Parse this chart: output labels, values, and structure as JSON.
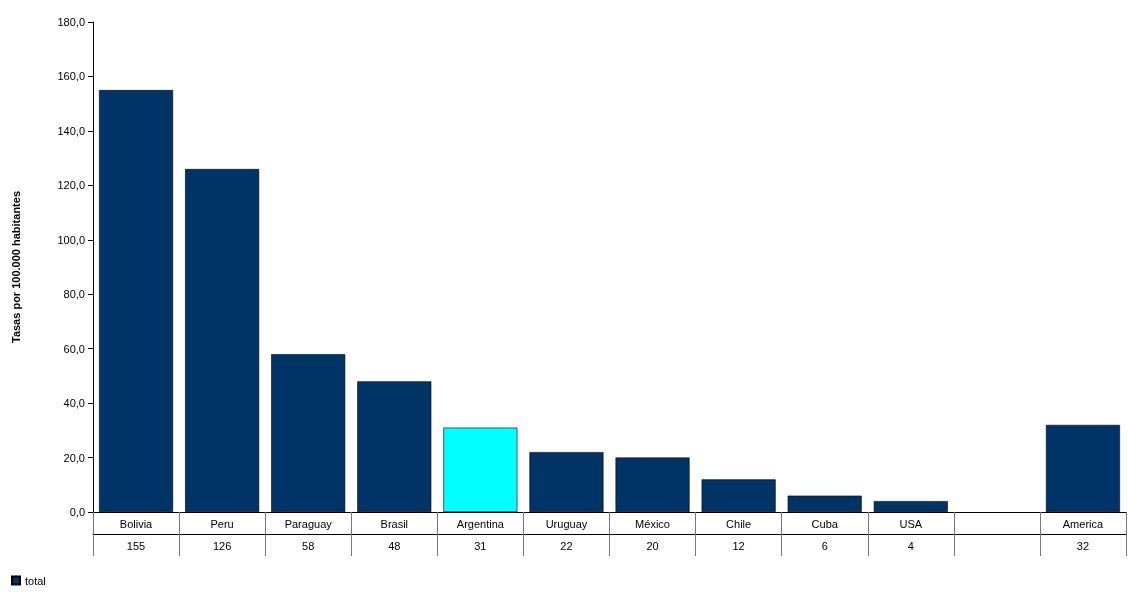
{
  "chart_data": {
    "type": "bar",
    "ylabel": "Tasas por 100.000 habitantes",
    "categories": [
      "Bolivia",
      "Peru",
      "Paraguay",
      "Brasil",
      "Argentina",
      "Uruguay",
      "México",
      "Chile",
      "Cuba",
      "USA",
      null,
      "America"
    ],
    "series": [
      {
        "name": "total",
        "color": "#003366",
        "colors": [
          "#003366",
          "#003366",
          "#003366",
          "#003366",
          "#00ffff",
          "#003366",
          "#003366",
          "#003366",
          "#003366",
          "#003366",
          "#003366",
          "#003366"
        ],
        "values": [
          155,
          126,
          58,
          48,
          31,
          22,
          20,
          12,
          6,
          4,
          null,
          32
        ]
      }
    ],
    "ylim": [
      0,
      180
    ],
    "yticks": [
      {
        "value": 0,
        "label": "0,0"
      },
      {
        "value": 20,
        "label": "20,0"
      },
      {
        "value": 40,
        "label": "40,0"
      },
      {
        "value": 60,
        "label": "60,0"
      },
      {
        "value": 80,
        "label": "80,0"
      },
      {
        "value": 100,
        "label": "100,0"
      },
      {
        "value": 120,
        "label": "120,0"
      },
      {
        "value": 140,
        "label": "140,0"
      },
      {
        "value": 160,
        "label": "160,0"
      },
      {
        "value": 180,
        "label": "180,0"
      }
    ],
    "data_labels": true,
    "legend": "bottom left"
  }
}
